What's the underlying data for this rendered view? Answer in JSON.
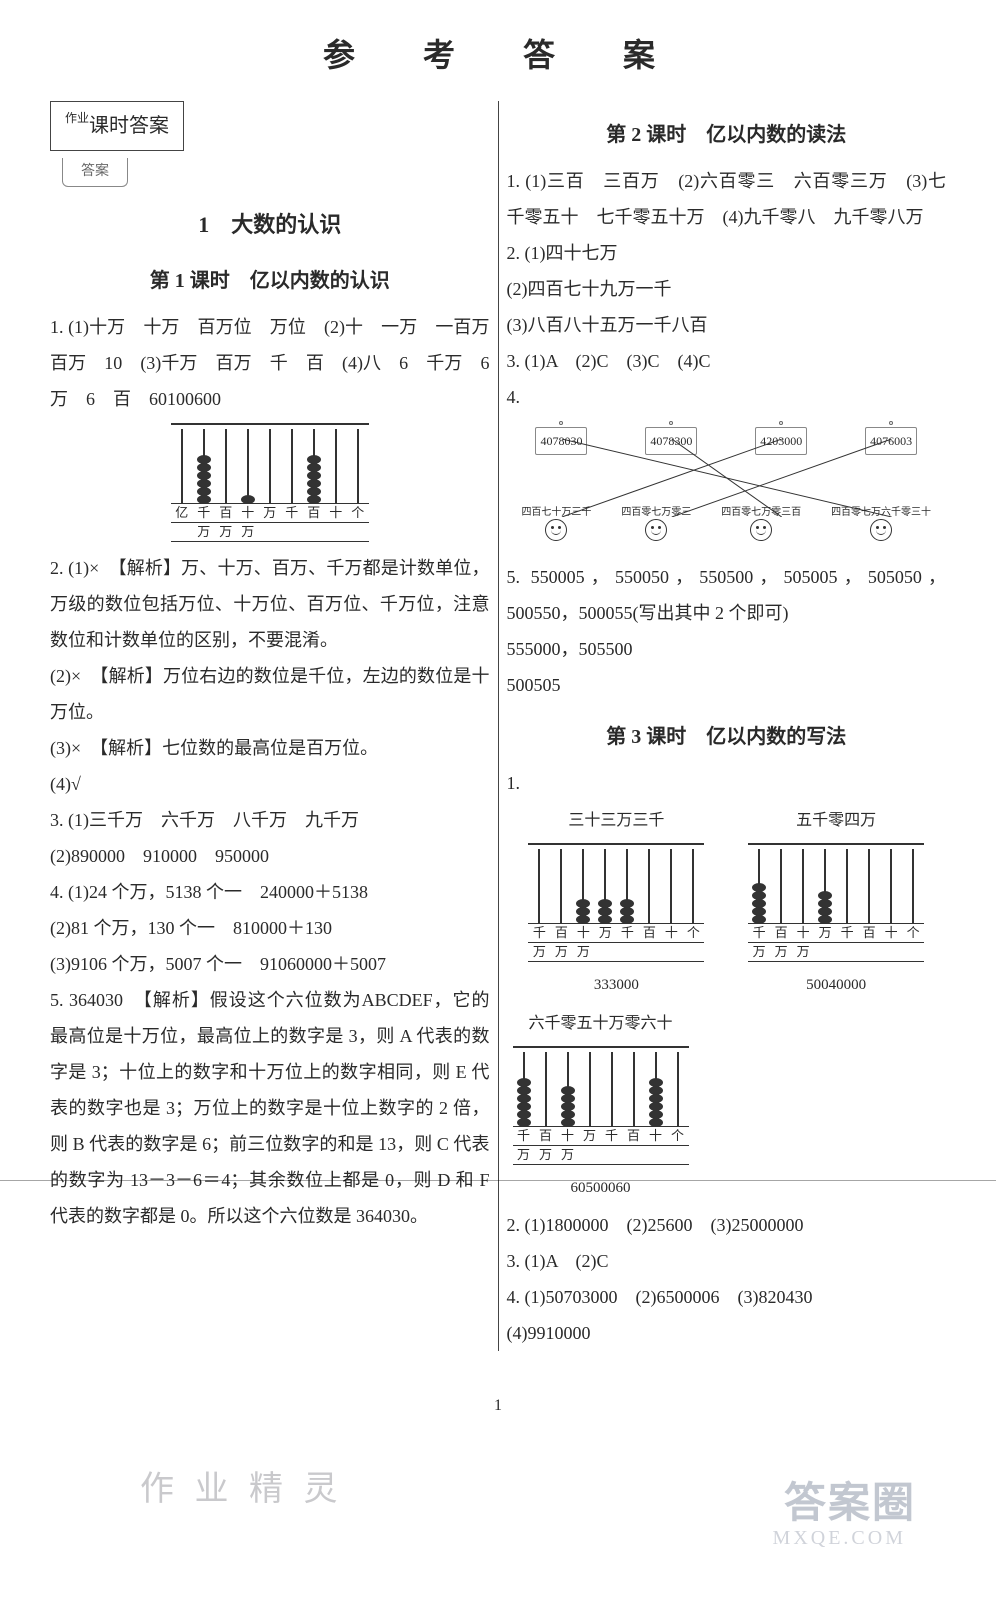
{
  "title": "参　考　答　案",
  "page_number": "1",
  "watermarks": {
    "wm1": "作 业 精 灵",
    "wm2": "答案圈",
    "wm3": "MXQE.COM"
  },
  "left": {
    "box_label": "课时答案",
    "box_sub": "答案",
    "box_prefix": "作业",
    "unit": "1　大数的认识",
    "lesson1_title": "第 1 课时　亿以内数的认识",
    "q1": "1. (1)十万　十万　百万位　万位　(2)十　一万　一百万　百万　10　(3)千万　百万　千　百　(4)八　6　千万　6　万　6　百　60100600",
    "q2_1": "2. (1)×　【解析】万、十万、百万、千万都是计数单位，万级的数位包括万位、十万位、百万位、千万位，注意数位和计数单位的区别，不要混淆。",
    "q2_2": "(2)×　【解析】万位右边的数位是千位，左边的数位是十万位。",
    "q2_3": "(3)×　【解析】七位数的最高位是百万位。",
    "q2_4": "(4)√",
    "q3": "3. (1)三千万　六千万　八千万　九千万",
    "q3b": "(2)890000　910000　950000",
    "q4a": "4. (1)24 个万，5138 个一　240000＋5138",
    "q4b": "(2)81 个万，130 个一　810000＋130",
    "q4c": "(3)9106 个万，5007 个一　91060000＋5007",
    "q5": "5. 364030　【解析】假设这个六位数为ABCDEF，它的最高位是十万位，最高位上的数字是 3，则 A 代表的数字是 3；十位上的数字和十万位上的数字相同，则 E 代表的数字也是 3；万位上的数字是十位上数字的 2 倍，则 B 代表的数字是 6；前三位数字的和是 13，则 C 代表的数字为 13－3－6＝4；其余数位上都是 0，则 D 和 F 代表的数字都是 0。所以这个六位数是 364030。",
    "abacus1": {
      "places_top": [
        "亿",
        "千",
        "百",
        "十",
        "万",
        "千",
        "百",
        "十",
        "个"
      ],
      "places_bot": [
        "",
        "万",
        "万",
        "万",
        "",
        "",
        "",
        "",
        ""
      ],
      "beads": [
        0,
        6,
        0,
        1,
        0,
        0,
        6,
        0,
        0
      ]
    }
  },
  "right": {
    "lesson2_title": "第 2 课时　亿以内数的读法",
    "r1": "1. (1)三百　三百万　(2)六百零三　六百零三万　(3)七千零五十　七千零五十万　(4)九千零八　九千零八万",
    "r2a": "2. (1)四十七万",
    "r2b": "(2)四百七十九万一千",
    "r2c": "(3)八百八十五万一千八百",
    "r3": "3. (1)A　(2)C　(3)C　(4)C",
    "r4": "4.",
    "match_top": [
      "4078030",
      "4078300",
      "4203000",
      "4076003"
    ],
    "match_bot": [
      "四百七十万三千",
      "四百零七万零三",
      "四百零七万零三百",
      "四百零七万六千零三十"
    ],
    "r5": "5. 550005，550050，550500，505005，505050，500550，500055(写出其中 2 个即可)",
    "r5b": "555000，505500",
    "r5c": "500505",
    "lesson3_title": "第 3 课时　亿以内数的写法",
    "l3_1": "1.",
    "ab1": {
      "label": "三十三万三千",
      "beads": [
        0,
        0,
        3,
        3,
        3,
        0,
        0,
        0
      ],
      "places_top": [
        "千",
        "百",
        "十",
        "万",
        "千",
        "百",
        "十",
        "个"
      ],
      "places_bot": [
        "万",
        "万",
        "万",
        "",
        "",
        "",
        "",
        ""
      ],
      "caption": "333000"
    },
    "ab2": {
      "label": "五千零四万",
      "beads": [
        5,
        0,
        0,
        4,
        0,
        0,
        0,
        0
      ],
      "places_top": [
        "千",
        "百",
        "十",
        "万",
        "千",
        "百",
        "十",
        "个"
      ],
      "places_bot": [
        "万",
        "万",
        "万",
        "",
        "",
        "",
        "",
        ""
      ],
      "caption": "50040000"
    },
    "ab3": {
      "label": "六千零五十万零六十",
      "beads": [
        6,
        0,
        5,
        0,
        0,
        0,
        6,
        0
      ],
      "places_top": [
        "千",
        "百",
        "十",
        "万",
        "千",
        "百",
        "十",
        "个"
      ],
      "places_bot": [
        "万",
        "万",
        "万",
        "",
        "",
        "",
        "",
        ""
      ],
      "caption": "60500060"
    },
    "l3_2": "2. (1)1800000　(2)25600　(3)25000000",
    "l3_3": "3. (1)A　(2)C",
    "l3_4": "4. (1)50703000　(2)6500006　(3)820430",
    "l3_4b": "(4)9910000"
  }
}
